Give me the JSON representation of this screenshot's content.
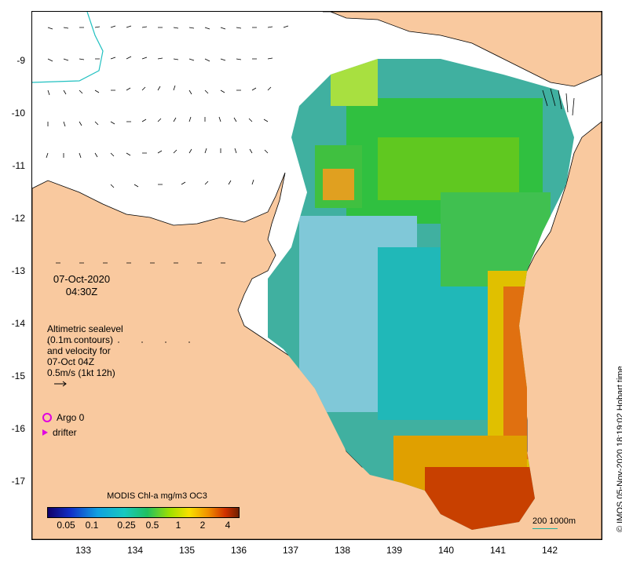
{
  "map": {
    "y_axis_labels": [
      "-9",
      "-10",
      "-11",
      "-12",
      "-13",
      "-14",
      "-15",
      "-16",
      "-17"
    ],
    "x_axis_labels": [
      "133",
      "134",
      "135",
      "136",
      "137",
      "138",
      "139",
      "140",
      "141",
      "142"
    ],
    "date": "07-Oct-2020",
    "time": "04:30Z",
    "info_lines": [
      "Altimetric sealevel",
      "(0.1m contours)",
      "and velocity for",
      "07-Oct 04Z",
      "0.5m/s (1kt 12h)"
    ],
    "legend": {
      "argo": "Argo 0",
      "drifter": "drifter"
    },
    "colorbar": {
      "title": "MODIS Chl-a mg/m3 OC3",
      "ticks": [
        "0.05",
        "0.1",
        "0.25",
        "0.5",
        "1",
        "2",
        "4"
      ]
    },
    "scale_label": "200  1000m",
    "credit": "© IMOS 05-Nov-2020 18:19:02 Hobart time",
    "colors": {
      "land": "#f9c99f",
      "water": "#ffffff",
      "argo": "#e000e0",
      "coast": "#000000",
      "shelf_contour": "#20c0c0"
    }
  }
}
